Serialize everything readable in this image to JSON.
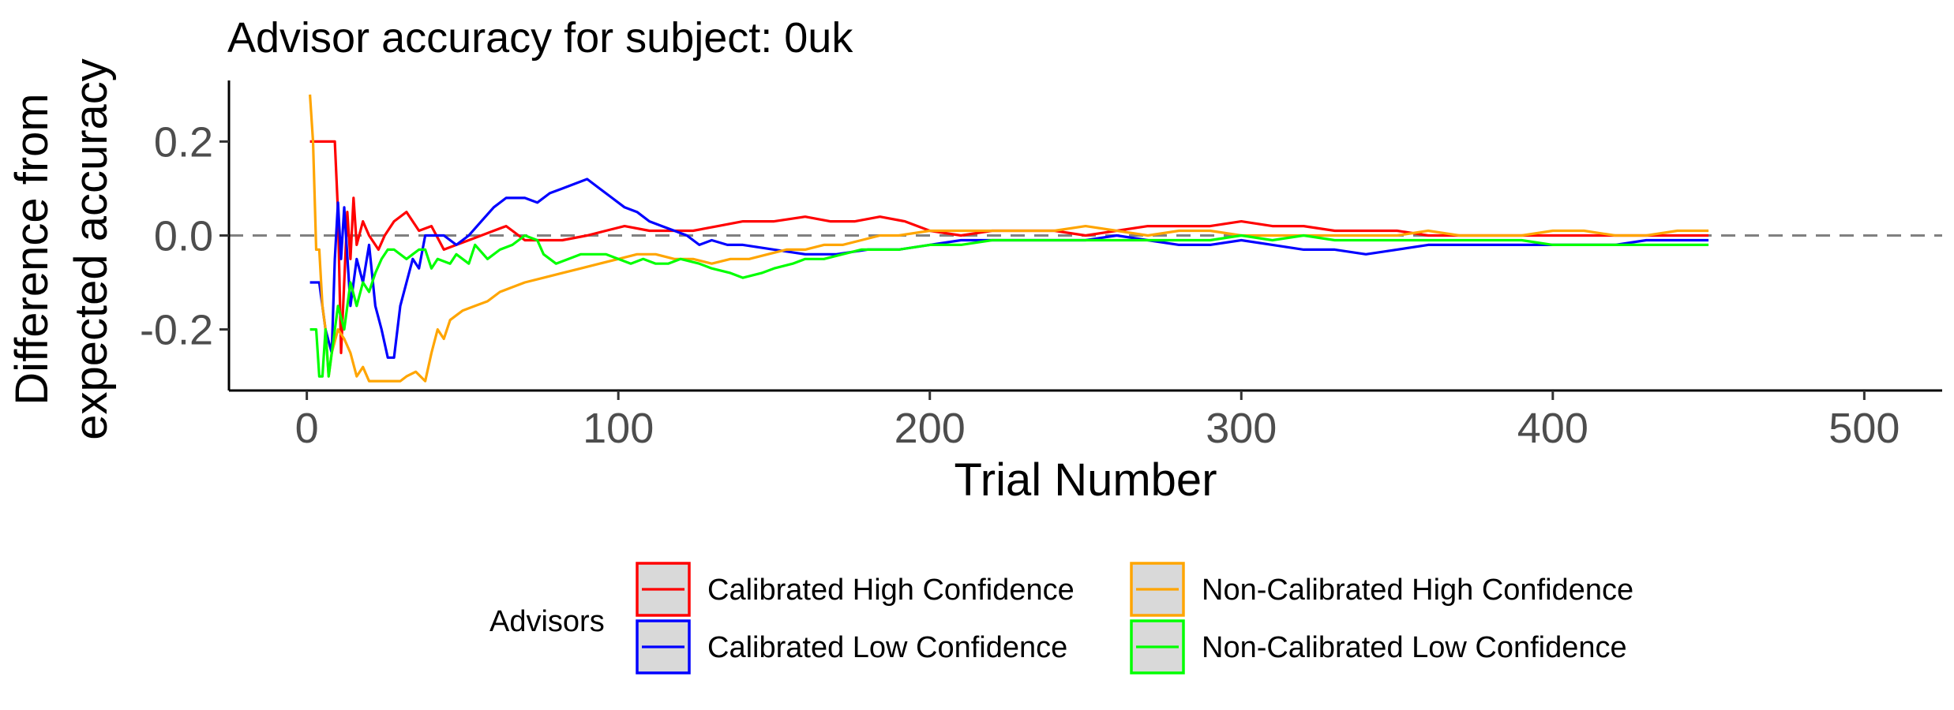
{
  "chart_data": {
    "type": "line",
    "title": "Advisor accuracy for subject: 0uk",
    "xlabel": "Trial Number",
    "ylabel": [
      "Difference from",
      "expected accuracy"
    ],
    "xlim": [
      -25,
      525
    ],
    "ylim": [
      -0.33,
      0.33
    ],
    "xticks": [
      0,
      100,
      200,
      300,
      400,
      500
    ],
    "yticks": [
      -0.2,
      0.0,
      0.2
    ],
    "ytick_labels": [
      "-0.2",
      "0.0",
      "0.2"
    ],
    "reference_line": {
      "y": 0,
      "style": "dashed",
      "color": "#808080"
    },
    "grid": false,
    "legend": {
      "title": "Advisors",
      "position": "bottom",
      "columns": 2
    },
    "series": [
      {
        "name": "Calibrated High Confidence",
        "color": "#ff0000",
        "points": [
          [
            1,
            0.2
          ],
          [
            5,
            0.2
          ],
          [
            9,
            0.2
          ],
          [
            10,
            0.05
          ],
          [
            11,
            -0.25
          ],
          [
            12,
            -0.1
          ],
          [
            13,
            0.05
          ],
          [
            14,
            -0.05
          ],
          [
            15,
            0.08
          ],
          [
            16,
            -0.02
          ],
          [
            18,
            0.03
          ],
          [
            20,
            0.0
          ],
          [
            23,
            -0.03
          ],
          [
            25,
            0.0
          ],
          [
            28,
            0.03
          ],
          [
            32,
            0.05
          ],
          [
            36,
            0.01
          ],
          [
            40,
            0.02
          ],
          [
            44,
            -0.03
          ],
          [
            48,
            -0.02
          ],
          [
            52,
            -0.01
          ],
          [
            56,
            0.0
          ],
          [
            60,
            0.01
          ],
          [
            64,
            0.02
          ],
          [
            66,
            0.01
          ],
          [
            70,
            -0.01
          ],
          [
            76,
            -0.01
          ],
          [
            82,
            -0.01
          ],
          [
            90,
            0.0
          ],
          [
            96,
            0.01
          ],
          [
            102,
            0.02
          ],
          [
            110,
            0.01
          ],
          [
            118,
            0.01
          ],
          [
            124,
            0.01
          ],
          [
            132,
            0.02
          ],
          [
            140,
            0.03
          ],
          [
            150,
            0.03
          ],
          [
            160,
            0.04
          ],
          [
            168,
            0.03
          ],
          [
            176,
            0.03
          ],
          [
            184,
            0.04
          ],
          [
            192,
            0.03
          ],
          [
            200,
            0.01
          ],
          [
            210,
            0.0
          ],
          [
            220,
            0.01
          ],
          [
            230,
            0.01
          ],
          [
            240,
            0.01
          ],
          [
            250,
            0.0
          ],
          [
            260,
            0.01
          ],
          [
            270,
            0.02
          ],
          [
            280,
            0.02
          ],
          [
            290,
            0.02
          ],
          [
            300,
            0.03
          ],
          [
            310,
            0.02
          ],
          [
            320,
            0.02
          ],
          [
            330,
            0.01
          ],
          [
            340,
            0.01
          ],
          [
            350,
            0.01
          ],
          [
            360,
            0.0
          ],
          [
            370,
            0.0
          ],
          [
            380,
            0.0
          ],
          [
            390,
            0.0
          ],
          [
            400,
            0.0
          ],
          [
            410,
            0.0
          ],
          [
            420,
            0.0
          ],
          [
            430,
            0.0
          ],
          [
            440,
            0.0
          ],
          [
            450,
            0.0
          ]
        ]
      },
      {
        "name": "Calibrated Low Confidence",
        "color": "#0000ff",
        "points": [
          [
            1,
            -0.1
          ],
          [
            4,
            -0.1
          ],
          [
            6,
            -0.2
          ],
          [
            8,
            -0.25
          ],
          [
            9,
            -0.05
          ],
          [
            10,
            0.07
          ],
          [
            11,
            -0.05
          ],
          [
            12,
            0.06
          ],
          [
            14,
            -0.15
          ],
          [
            16,
            -0.05
          ],
          [
            18,
            -0.1
          ],
          [
            20,
            -0.02
          ],
          [
            22,
            -0.15
          ],
          [
            24,
            -0.2
          ],
          [
            26,
            -0.26
          ],
          [
            28,
            -0.26
          ],
          [
            30,
            -0.15
          ],
          [
            32,
            -0.1
          ],
          [
            34,
            -0.05
          ],
          [
            36,
            -0.07
          ],
          [
            38,
            0.0
          ],
          [
            40,
            0.0
          ],
          [
            44,
            0.0
          ],
          [
            48,
            -0.02
          ],
          [
            52,
            0.0
          ],
          [
            56,
            0.03
          ],
          [
            60,
            0.06
          ],
          [
            64,
            0.08
          ],
          [
            70,
            0.08
          ],
          [
            74,
            0.07
          ],
          [
            78,
            0.09
          ],
          [
            82,
            0.1
          ],
          [
            86,
            0.11
          ],
          [
            90,
            0.12
          ],
          [
            94,
            0.1
          ],
          [
            98,
            0.08
          ],
          [
            102,
            0.06
          ],
          [
            106,
            0.05
          ],
          [
            110,
            0.03
          ],
          [
            114,
            0.02
          ],
          [
            118,
            0.01
          ],
          [
            122,
            0.0
          ],
          [
            126,
            -0.02
          ],
          [
            130,
            -0.01
          ],
          [
            135,
            -0.02
          ],
          [
            140,
            -0.02
          ],
          [
            150,
            -0.03
          ],
          [
            160,
            -0.04
          ],
          [
            170,
            -0.04
          ],
          [
            180,
            -0.03
          ],
          [
            190,
            -0.03
          ],
          [
            200,
            -0.02
          ],
          [
            210,
            -0.01
          ],
          [
            220,
            -0.01
          ],
          [
            230,
            -0.01
          ],
          [
            240,
            -0.01
          ],
          [
            250,
            -0.01
          ],
          [
            260,
            0.0
          ],
          [
            270,
            -0.01
          ],
          [
            280,
            -0.02
          ],
          [
            290,
            -0.02
          ],
          [
            300,
            -0.01
          ],
          [
            310,
            -0.02
          ],
          [
            320,
            -0.03
          ],
          [
            330,
            -0.03
          ],
          [
            340,
            -0.04
          ],
          [
            350,
            -0.03
          ],
          [
            360,
            -0.02
          ],
          [
            370,
            -0.02
          ],
          [
            380,
            -0.02
          ],
          [
            390,
            -0.02
          ],
          [
            400,
            -0.02
          ],
          [
            410,
            -0.02
          ],
          [
            420,
            -0.02
          ],
          [
            430,
            -0.01
          ],
          [
            440,
            -0.01
          ],
          [
            450,
            -0.01
          ]
        ]
      },
      {
        "name": "Non-Calibrated High Confidence",
        "color": "#ffa500",
        "points": [
          [
            1,
            0.3
          ],
          [
            2,
            0.2
          ],
          [
            3,
            -0.03
          ],
          [
            4,
            -0.03
          ],
          [
            5,
            -0.15
          ],
          [
            6,
            -0.2
          ],
          [
            7,
            -0.3
          ],
          [
            8,
            -0.25
          ],
          [
            10,
            -0.2
          ],
          [
            12,
            -0.22
          ],
          [
            14,
            -0.25
          ],
          [
            16,
            -0.3
          ],
          [
            18,
            -0.28
          ],
          [
            20,
            -0.31
          ],
          [
            24,
            -0.31
          ],
          [
            28,
            -0.31
          ],
          [
            30,
            -0.31
          ],
          [
            32,
            -0.3
          ],
          [
            35,
            -0.29
          ],
          [
            38,
            -0.31
          ],
          [
            40,
            -0.25
          ],
          [
            42,
            -0.2
          ],
          [
            44,
            -0.22
          ],
          [
            46,
            -0.18
          ],
          [
            48,
            -0.17
          ],
          [
            50,
            -0.16
          ],
          [
            54,
            -0.15
          ],
          [
            58,
            -0.14
          ],
          [
            62,
            -0.12
          ],
          [
            66,
            -0.11
          ],
          [
            70,
            -0.1
          ],
          [
            76,
            -0.09
          ],
          [
            82,
            -0.08
          ],
          [
            88,
            -0.07
          ],
          [
            94,
            -0.06
          ],
          [
            100,
            -0.05
          ],
          [
            106,
            -0.04
          ],
          [
            112,
            -0.04
          ],
          [
            118,
            -0.05
          ],
          [
            124,
            -0.05
          ],
          [
            130,
            -0.06
          ],
          [
            136,
            -0.05
          ],
          [
            142,
            -0.05
          ],
          [
            148,
            -0.04
          ],
          [
            154,
            -0.03
          ],
          [
            160,
            -0.03
          ],
          [
            166,
            -0.02
          ],
          [
            172,
            -0.02
          ],
          [
            178,
            -0.01
          ],
          [
            184,
            0.0
          ],
          [
            190,
            0.0
          ],
          [
            200,
            0.01
          ],
          [
            210,
            0.01
          ],
          [
            220,
            0.01
          ],
          [
            230,
            0.01
          ],
          [
            240,
            0.01
          ],
          [
            250,
            0.02
          ],
          [
            260,
            0.01
          ],
          [
            270,
            0.0
          ],
          [
            280,
            0.01
          ],
          [
            290,
            0.01
          ],
          [
            300,
            0.0
          ],
          [
            310,
            0.0
          ],
          [
            320,
            0.0
          ],
          [
            330,
            0.0
          ],
          [
            340,
            0.0
          ],
          [
            350,
            0.0
          ],
          [
            360,
            0.01
          ],
          [
            370,
            0.0
          ],
          [
            380,
            0.0
          ],
          [
            390,
            0.0
          ],
          [
            400,
            0.01
          ],
          [
            410,
            0.01
          ],
          [
            420,
            0.0
          ],
          [
            430,
            0.0
          ],
          [
            440,
            0.01
          ],
          [
            450,
            0.01
          ]
        ]
      },
      {
        "name": "Non-Calibrated Low Confidence",
        "color": "#00ff00",
        "points": [
          [
            1,
            -0.2
          ],
          [
            3,
            -0.2
          ],
          [
            4,
            -0.3
          ],
          [
            5,
            -0.3
          ],
          [
            6,
            -0.2
          ],
          [
            7,
            -0.3
          ],
          [
            8,
            -0.25
          ],
          [
            10,
            -0.15
          ],
          [
            12,
            -0.2
          ],
          [
            14,
            -0.1
          ],
          [
            16,
            -0.15
          ],
          [
            18,
            -0.1
          ],
          [
            20,
            -0.12
          ],
          [
            22,
            -0.08
          ],
          [
            24,
            -0.05
          ],
          [
            26,
            -0.03
          ],
          [
            28,
            -0.03
          ],
          [
            32,
            -0.05
          ],
          [
            34,
            -0.04
          ],
          [
            36,
            -0.03
          ],
          [
            38,
            -0.03
          ],
          [
            40,
            -0.07
          ],
          [
            42,
            -0.05
          ],
          [
            46,
            -0.06
          ],
          [
            48,
            -0.04
          ],
          [
            52,
            -0.06
          ],
          [
            54,
            -0.02
          ],
          [
            58,
            -0.05
          ],
          [
            62,
            -0.03
          ],
          [
            66,
            -0.02
          ],
          [
            70,
            0.0
          ],
          [
            74,
            -0.01
          ],
          [
            76,
            -0.04
          ],
          [
            80,
            -0.06
          ],
          [
            84,
            -0.05
          ],
          [
            88,
            -0.04
          ],
          [
            92,
            -0.04
          ],
          [
            96,
            -0.04
          ],
          [
            100,
            -0.05
          ],
          [
            104,
            -0.06
          ],
          [
            108,
            -0.05
          ],
          [
            112,
            -0.06
          ],
          [
            116,
            -0.06
          ],
          [
            120,
            -0.05
          ],
          [
            126,
            -0.06
          ],
          [
            130,
            -0.07
          ],
          [
            136,
            -0.08
          ],
          [
            140,
            -0.09
          ],
          [
            146,
            -0.08
          ],
          [
            150,
            -0.07
          ],
          [
            156,
            -0.06
          ],
          [
            160,
            -0.05
          ],
          [
            166,
            -0.05
          ],
          [
            172,
            -0.04
          ],
          [
            178,
            -0.03
          ],
          [
            184,
            -0.03
          ],
          [
            190,
            -0.03
          ],
          [
            200,
            -0.02
          ],
          [
            210,
            -0.02
          ],
          [
            220,
            -0.01
          ],
          [
            230,
            -0.01
          ],
          [
            240,
            -0.01
          ],
          [
            250,
            -0.01
          ],
          [
            260,
            -0.01
          ],
          [
            270,
            -0.01
          ],
          [
            280,
            -0.01
          ],
          [
            290,
            -0.01
          ],
          [
            300,
            0.0
          ],
          [
            310,
            -0.01
          ],
          [
            320,
            0.0
          ],
          [
            330,
            -0.01
          ],
          [
            340,
            -0.01
          ],
          [
            350,
            -0.01
          ],
          [
            360,
            -0.01
          ],
          [
            370,
            -0.01
          ],
          [
            380,
            -0.01
          ],
          [
            390,
            -0.01
          ],
          [
            400,
            -0.02
          ],
          [
            410,
            -0.02
          ],
          [
            420,
            -0.02
          ],
          [
            430,
            -0.02
          ],
          [
            440,
            -0.02
          ],
          [
            450,
            -0.02
          ]
        ]
      }
    ]
  }
}
